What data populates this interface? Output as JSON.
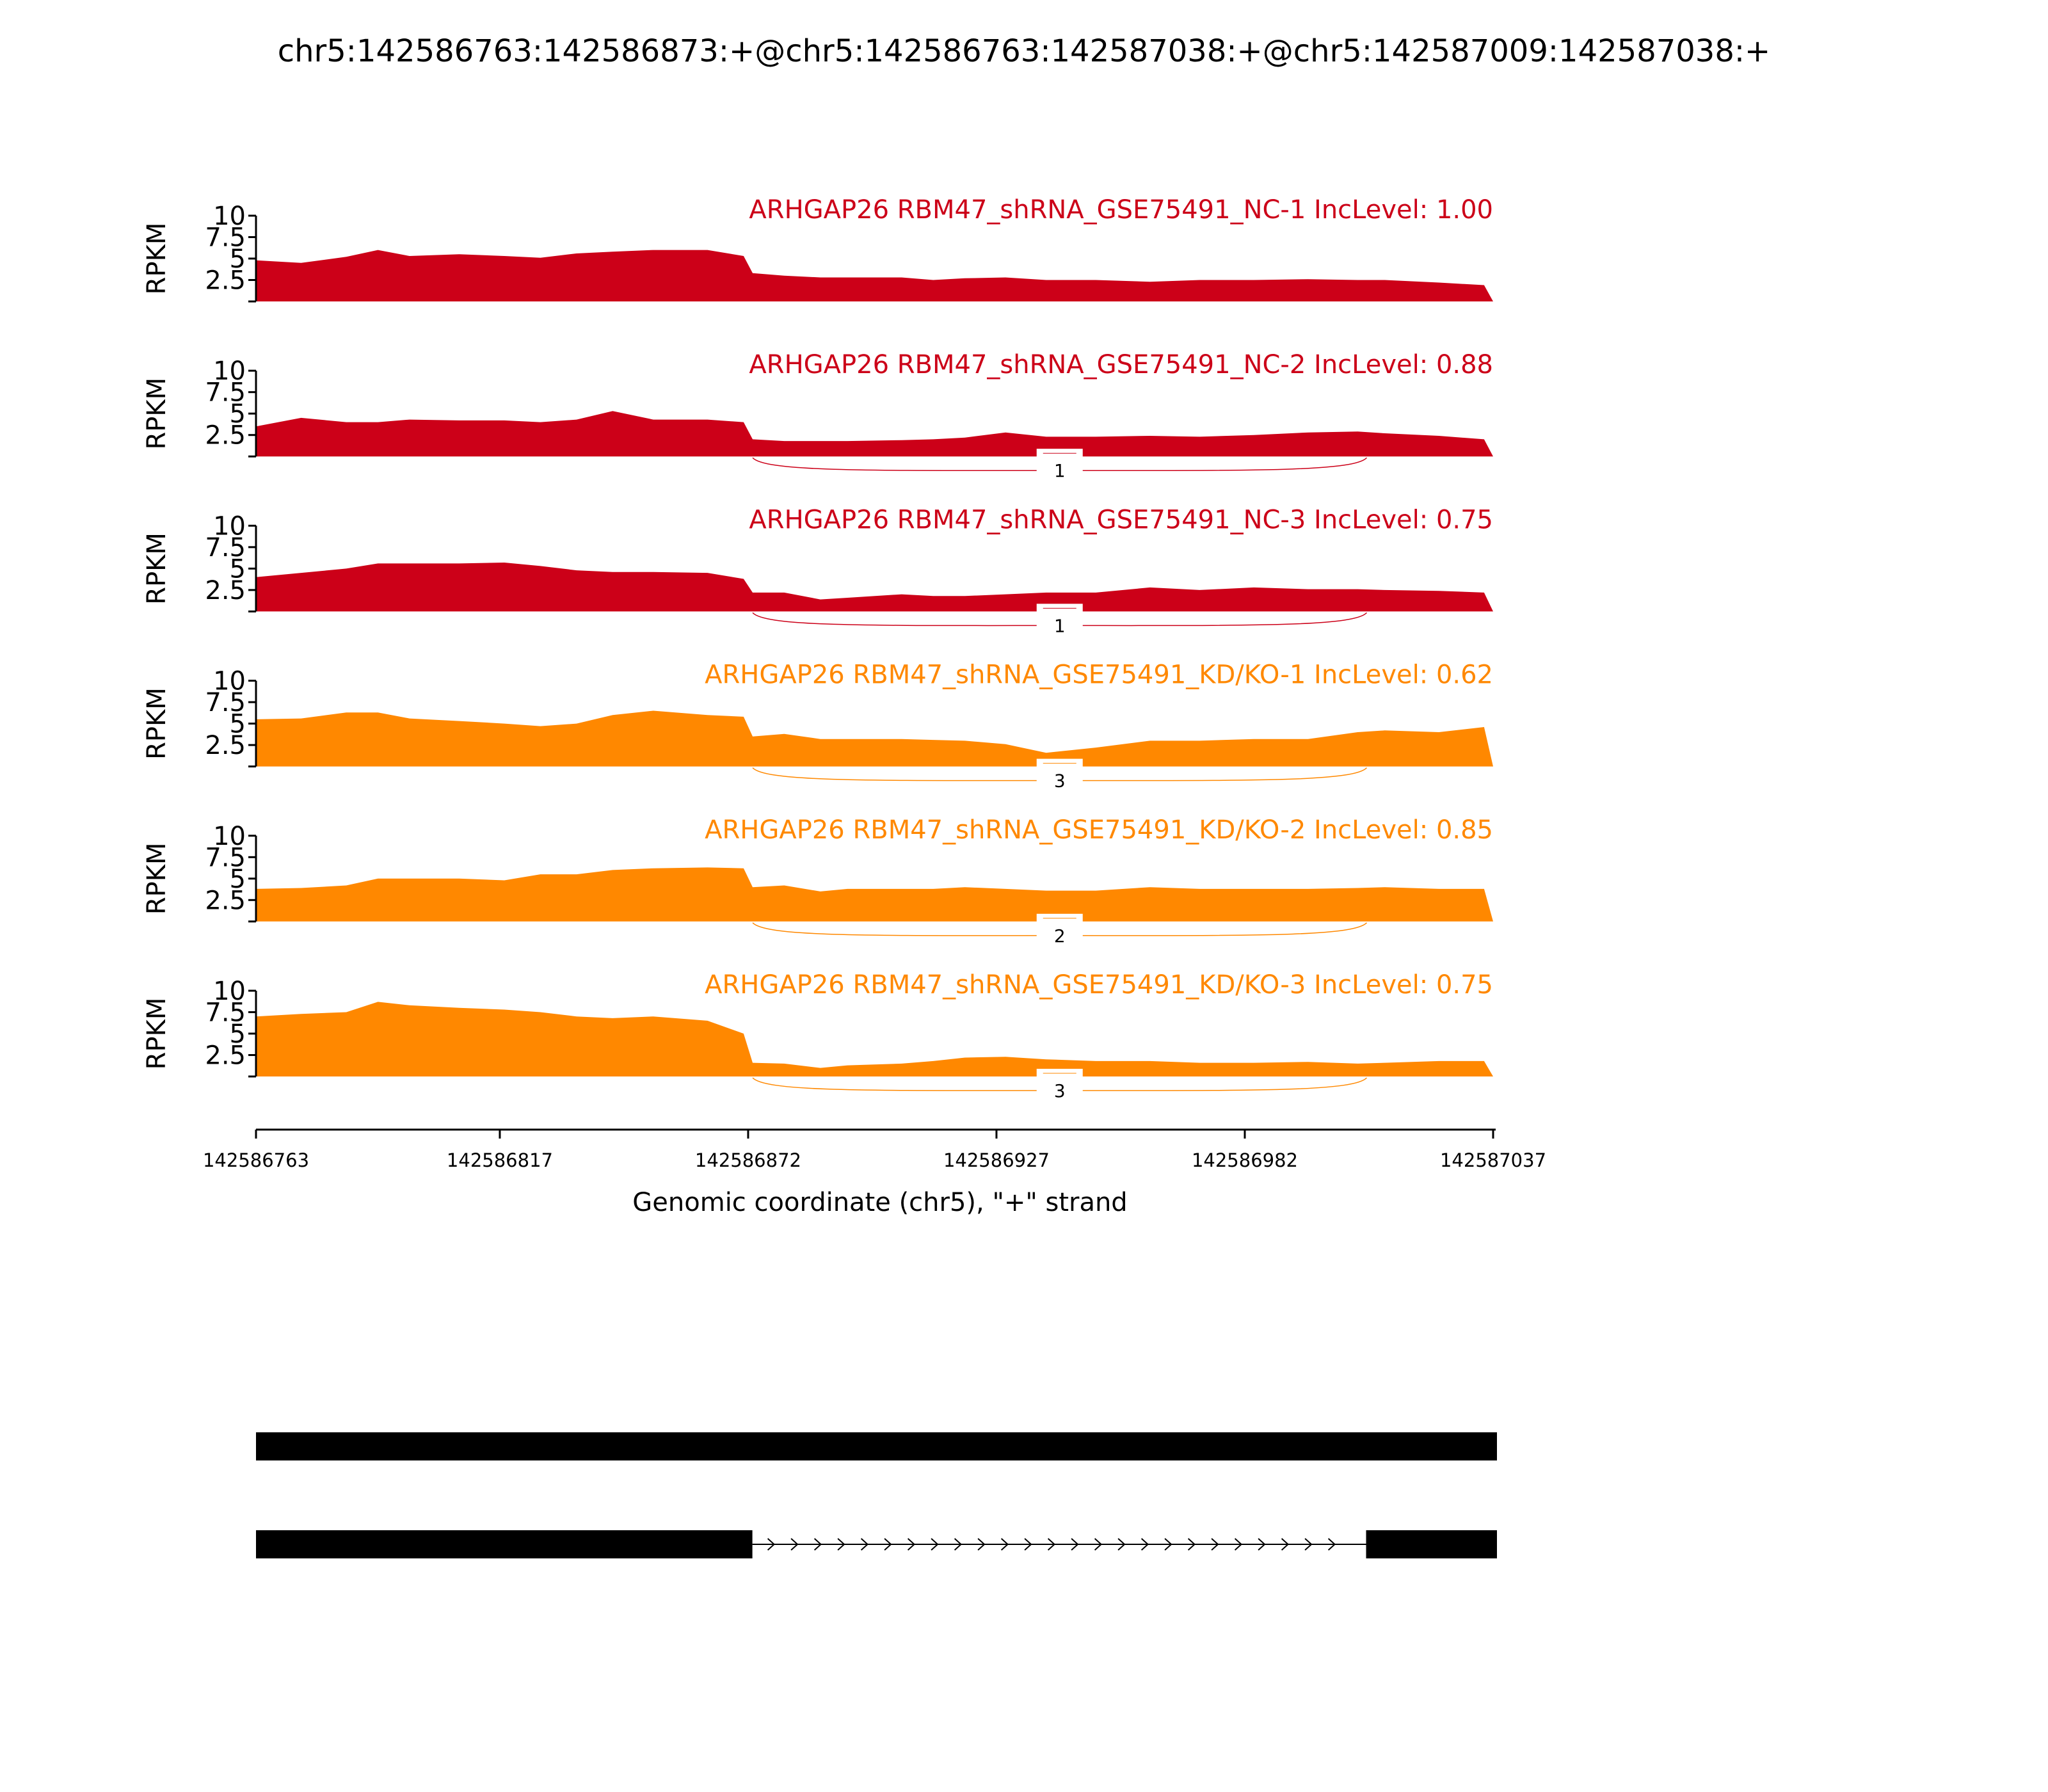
{
  "chart_data": {
    "type": "area",
    "title": "chr5:142586763:142586873:+@chr5:142586763:142587038:+@chr5:142587009:142587038:+",
    "xlabel": "Genomic coordinate (chr5), \"+\" strand",
    "ylabel": "RPKM",
    "xlim": [
      142586763,
      142587037
    ],
    "ylim": [
      0,
      10
    ],
    "ytick_labels": [
      "2.5",
      "5",
      "7.5",
      "10"
    ],
    "yticks": [
      0,
      2.5,
      5,
      7.5,
      10
    ],
    "xtick_labels": [
      "142586763",
      "142586817",
      "142586872",
      "142586927",
      "142586982",
      "142587037"
    ],
    "xticks": [
      142586763,
      142586817,
      142586872,
      142586927,
      142586982,
      142587037
    ],
    "colors": {
      "NC": "#CC0018",
      "KD": "#FF8800"
    },
    "x": [
      142586763,
      142586773,
      142586783,
      142586790,
      142586797,
      142586808,
      142586818,
      142586826,
      142586834,
      142586842,
      142586851,
      142586863,
      142586871,
      142586873,
      142586880,
      142586888,
      142586894,
      142586906,
      142586913,
      142586920,
      142586929,
      142586938,
      142586949,
      142586961,
      142586972,
      142586984,
      142586996,
      142587007,
      142587013,
      142587025,
      142587035,
      142587037
    ],
    "junction": {
      "start": 142586873,
      "end": 142587009
    },
    "series": [
      {
        "name": "ARHGAP26 RBM47_shRNA_GSE75491_NC-1 IncLevel: 1.00",
        "group": "NC",
        "junction_count": null,
        "values": [
          4.8,
          4.5,
          5.2,
          6.0,
          5.3,
          5.5,
          5.3,
          5.1,
          5.6,
          5.8,
          6.0,
          6.0,
          5.3,
          3.3,
          3.0,
          2.8,
          2.8,
          2.8,
          2.5,
          2.7,
          2.8,
          2.5,
          2.5,
          2.3,
          2.5,
          2.5,
          2.6,
          2.5,
          2.5,
          2.2,
          1.9,
          0
        ]
      },
      {
        "name": "ARHGAP26 RBM47_shRNA_GSE75491_NC-2 IncLevel: 0.88",
        "group": "NC",
        "junction_count": "1",
        "values": [
          3.5,
          4.5,
          4.0,
          4.0,
          4.3,
          4.2,
          4.2,
          4.0,
          4.3,
          5.3,
          4.3,
          4.3,
          4.0,
          2.0,
          1.8,
          1.8,
          1.8,
          1.9,
          2.0,
          2.2,
          2.8,
          2.3,
          2.3,
          2.4,
          2.3,
          2.5,
          2.8,
          2.9,
          2.7,
          2.4,
          2.0,
          0
        ]
      },
      {
        "name": "ARHGAP26 RBM47_shRNA_GSE75491_NC-3 IncLevel: 0.75",
        "group": "NC",
        "junction_count": "1",
        "values": [
          4.0,
          4.5,
          5.0,
          5.6,
          5.6,
          5.6,
          5.7,
          5.3,
          4.8,
          4.6,
          4.6,
          4.5,
          3.8,
          2.2,
          2.2,
          1.4,
          1.6,
          2.0,
          1.8,
          1.8,
          2.0,
          2.2,
          2.2,
          2.8,
          2.5,
          2.8,
          2.6,
          2.6,
          2.5,
          2.4,
          2.2,
          0
        ]
      },
      {
        "name": "ARHGAP26 RBM47_shRNA_GSE75491_KD/KO-1 IncLevel: 0.62",
        "group": "KD",
        "junction_count": "3",
        "values": [
          5.5,
          5.6,
          6.3,
          6.3,
          5.6,
          5.3,
          5.0,
          4.7,
          5.0,
          6.0,
          6.5,
          6.0,
          5.8,
          3.5,
          3.8,
          3.2,
          3.2,
          3.2,
          3.1,
          3.0,
          2.6,
          1.6,
          2.2,
          3.0,
          3.0,
          3.2,
          3.2,
          4.0,
          4.2,
          4.0,
          4.6,
          0
        ]
      },
      {
        "name": "ARHGAP26 RBM47_shRNA_GSE75491_KD/KO-2 IncLevel: 0.85",
        "group": "KD",
        "junction_count": "2",
        "values": [
          3.8,
          3.9,
          4.2,
          5.0,
          5.0,
          5.0,
          4.8,
          5.5,
          5.5,
          6.0,
          6.2,
          6.3,
          6.2,
          4.0,
          4.2,
          3.5,
          3.8,
          3.8,
          3.8,
          4.0,
          3.8,
          3.6,
          3.6,
          4.0,
          3.8,
          3.8,
          3.8,
          3.9,
          4.0,
          3.8,
          3.8,
          0
        ]
      },
      {
        "name": "ARHGAP26 RBM47_shRNA_GSE75491_KD/KO-3 IncLevel: 0.75",
        "group": "KD",
        "junction_count": "3",
        "values": [
          7.0,
          7.3,
          7.5,
          8.7,
          8.3,
          8.0,
          7.8,
          7.5,
          7.0,
          6.8,
          7.0,
          6.5,
          5.0,
          1.6,
          1.5,
          1.0,
          1.3,
          1.5,
          1.8,
          2.2,
          2.3,
          2.0,
          1.8,
          1.8,
          1.6,
          1.6,
          1.7,
          1.5,
          1.6,
          1.8,
          1.8,
          0
        ]
      }
    ],
    "gene_model": {
      "isoforms": [
        {
          "exons": [
            [
              142586763,
              142587038
            ]
          ]
        },
        {
          "exons": [
            [
              142586763,
              142586873
            ],
            [
              142587009,
              142587038
            ]
          ]
        }
      ]
    }
  }
}
